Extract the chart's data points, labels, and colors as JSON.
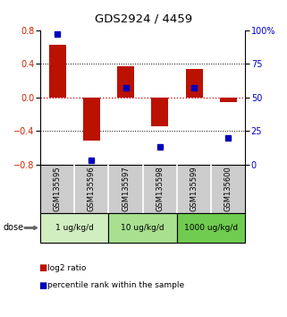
{
  "title": "GDS2924 / 4459",
  "samples": [
    "GSM135595",
    "GSM135596",
    "GSM135597",
    "GSM135598",
    "GSM135599",
    "GSM135600"
  ],
  "log2_ratios": [
    0.62,
    -0.52,
    0.37,
    -0.35,
    0.34,
    -0.06
  ],
  "percentile_ranks": [
    97,
    3,
    57,
    13,
    57,
    20
  ],
  "dose_groups": [
    {
      "label": "1 ug/kg/d",
      "samples": [
        0,
        1
      ],
      "color": "#d0eec0"
    },
    {
      "label": "10 ug/kg/d",
      "samples": [
        2,
        3
      ],
      "color": "#a8e090"
    },
    {
      "label": "1000 ug/kg/d",
      "samples": [
        4,
        5
      ],
      "color": "#70cc50"
    }
  ],
  "bar_color": "#bb1100",
  "dot_color": "#0000bb",
  "left_ylim": [
    -0.8,
    0.8
  ],
  "right_ylim": [
    0,
    100
  ],
  "left_yticks": [
    -0.8,
    -0.4,
    0.0,
    0.4,
    0.8
  ],
  "right_yticks": [
    0,
    25,
    50,
    75,
    100
  ],
  "right_yticklabels": [
    "0",
    "25",
    "50",
    "75",
    "100%"
  ],
  "hline_y": 0,
  "dotted_lines": [
    -0.4,
    0.4
  ],
  "sample_box_color": "#cccccc",
  "legend_bar_label": "log2 ratio",
  "legend_dot_label": "percentile rank within the sample",
  "dose_label": "dose",
  "background_color": "#ffffff",
  "bar_width": 0.5
}
